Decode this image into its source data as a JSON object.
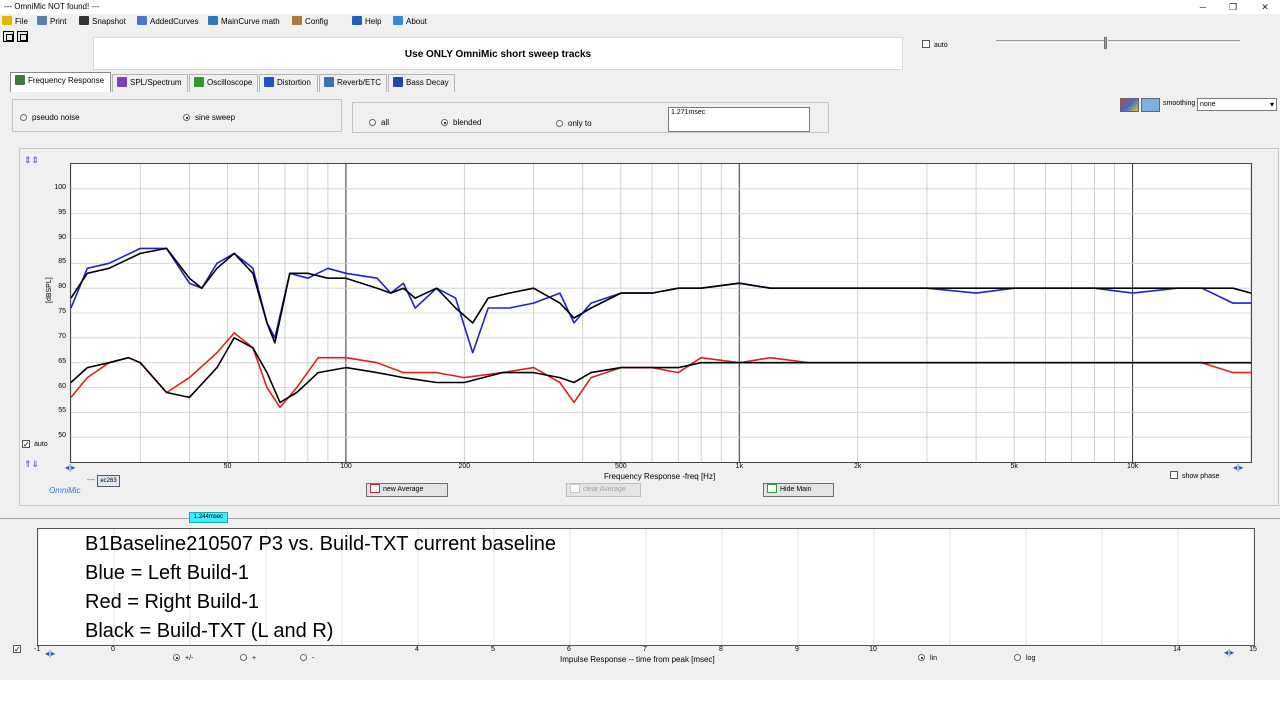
{
  "window": {
    "title": "--- OmniMic NOT found! ---",
    "minimize_glyph": "─",
    "restore_glyph": "❐",
    "close_glyph": "✕"
  },
  "menu": [
    {
      "label": "File",
      "icon": "folder-icon",
      "color": "#e8b400"
    },
    {
      "label": "Print",
      "icon": "printer-icon",
      "color": "#5b7fb0"
    },
    {
      "label": "Snapshot",
      "icon": "camera-icon",
      "color": "#333333"
    },
    {
      "label": "AddedCurves",
      "icon": "curves-icon",
      "color": "#4a78c2"
    },
    {
      "label": "MainCurve math",
      "icon": "calculator-icon",
      "color": "#2f7bb5"
    },
    {
      "label": "Config",
      "icon": "tools-icon",
      "color": "#b07a3b"
    },
    {
      "label": "Help",
      "icon": "help-icon",
      "color": "#1f5fbf"
    },
    {
      "label": "About",
      "icon": "about-icon",
      "color": "#3a86d6"
    }
  ],
  "banner": "Use ONLY OmniMic short sweep tracks",
  "auto_label": "auto",
  "tabs": [
    {
      "label": "Frequency Response",
      "icon": "frequency-response-icon",
      "color": "#3c7a3c",
      "active": true
    },
    {
      "label": "SPL/Spectrum",
      "icon": "spl-meter-icon",
      "color": "#7f3fbf",
      "active": false
    },
    {
      "label": "Oscilloscope",
      "icon": "oscilloscope-icon",
      "color": "#2e9b2e",
      "active": false
    },
    {
      "label": "Distortion",
      "icon": "distortion-icon",
      "color": "#1f52c4",
      "active": false
    },
    {
      "label": "Reverb/ETC",
      "icon": "reverb-icon",
      "color": "#3a6fb5",
      "active": false
    },
    {
      "label": "Bass Decay",
      "icon": "bass-decay-icon",
      "color": "#2048a8",
      "active": false
    }
  ],
  "signal": {
    "pseudo_noise": "pseudo noise",
    "sine_sweep": "sine sweep",
    "selected": "sine sweep"
  },
  "window_mode": {
    "all": "all",
    "blended": "blended",
    "only_to": "only to",
    "selected": "blended",
    "time_value": "1.271msec"
  },
  "smoothing": {
    "label": "smoothing",
    "value": "none",
    "dropdown_glyph": "▾"
  },
  "graph": {
    "ylabel": "[dBSPL]",
    "yticks": [
      "100",
      "95",
      "90",
      "85",
      "80",
      "75",
      "70",
      "65",
      "60",
      "55",
      "50"
    ],
    "xlabel": "Frequency Response -freq [Hz]",
    "xticks": [
      "50",
      "100",
      "200",
      "500",
      "1k",
      "2k",
      "5k",
      "10k"
    ],
    "x_edge_glyph": "◂|▸",
    "auto_label": "auto",
    "show_phase_label": "show phase",
    "brand": "OmniMic",
    "mic_label": "ec263",
    "legend_dash": "—",
    "new_average": "new Average",
    "clear_average": "clear Average",
    "hide_main": "Hide Main"
  },
  "chart_data": {
    "type": "line",
    "xlabel": "Frequency Response -freq [Hz]",
    "ylabel": "[dBSPL]",
    "x_scale": "log",
    "xlim": [
      20,
      20000
    ],
    "ylim": [
      45,
      105
    ],
    "grid": true,
    "series": [
      {
        "color": "#2020d0",
        "points": [
          [
            20,
            76
          ],
          [
            22,
            84
          ],
          [
            25,
            85
          ],
          [
            30,
            88
          ],
          [
            35,
            88
          ],
          [
            40,
            81
          ],
          [
            43,
            80
          ],
          [
            47,
            85
          ],
          [
            52,
            87
          ],
          [
            58,
            84
          ],
          [
            63,
            73
          ],
          [
            66,
            70
          ],
          [
            72,
            83
          ],
          [
            80,
            82
          ],
          [
            90,
            84
          ],
          [
            100,
            83
          ],
          [
            120,
            82
          ],
          [
            130,
            79
          ],
          [
            140,
            81
          ],
          [
            150,
            76
          ],
          [
            170,
            80
          ],
          [
            190,
            78
          ],
          [
            210,
            67
          ],
          [
            230,
            76
          ],
          [
            260,
            76
          ],
          [
            300,
            77
          ],
          [
            350,
            79
          ],
          [
            380,
            73
          ],
          [
            420,
            77
          ],
          [
            500,
            79
          ],
          [
            600,
            79
          ],
          [
            700,
            80
          ],
          [
            800,
            80
          ],
          [
            1000,
            81
          ],
          [
            1200,
            80
          ],
          [
            1500,
            80
          ],
          [
            2000,
            80
          ],
          [
            3000,
            80
          ],
          [
            4000,
            79
          ],
          [
            5000,
            80
          ],
          [
            6000,
            80
          ],
          [
            8000,
            80
          ],
          [
            10000,
            79
          ],
          [
            13000,
            80
          ],
          [
            15000,
            80
          ],
          [
            18000,
            77
          ],
          [
            20000,
            77
          ]
        ]
      },
      {
        "color": "#000000",
        "points": [
          [
            20,
            78
          ],
          [
            22,
            83
          ],
          [
            25,
            84
          ],
          [
            30,
            87
          ],
          [
            35,
            88
          ],
          [
            40,
            82
          ],
          [
            43,
            80
          ],
          [
            47,
            84
          ],
          [
            52,
            87
          ],
          [
            58,
            83
          ],
          [
            63,
            73
          ],
          [
            66,
            69
          ],
          [
            72,
            83
          ],
          [
            80,
            83
          ],
          [
            90,
            82
          ],
          [
            100,
            82
          ],
          [
            120,
            80
          ],
          [
            130,
            79
          ],
          [
            140,
            80
          ],
          [
            150,
            78
          ],
          [
            170,
            80
          ],
          [
            190,
            76
          ],
          [
            210,
            73
          ],
          [
            230,
            78
          ],
          [
            260,
            79
          ],
          [
            300,
            80
          ],
          [
            350,
            77
          ],
          [
            380,
            74
          ],
          [
            420,
            76
          ],
          [
            500,
            79
          ],
          [
            600,
            79
          ],
          [
            700,
            80
          ],
          [
            800,
            80
          ],
          [
            1000,
            81
          ],
          [
            1200,
            80
          ],
          [
            1500,
            80
          ],
          [
            2000,
            80
          ],
          [
            3000,
            80
          ],
          [
            4000,
            80
          ],
          [
            5000,
            80
          ],
          [
            6000,
            80
          ],
          [
            8000,
            80
          ],
          [
            10000,
            80
          ],
          [
            13000,
            80
          ],
          [
            15000,
            80
          ],
          [
            18000,
            80
          ],
          [
            20000,
            79
          ]
        ]
      },
      {
        "color": "#e02020",
        "points": [
          [
            20,
            58
          ],
          [
            22,
            62
          ],
          [
            25,
            65
          ],
          [
            28,
            66
          ],
          [
            30,
            65
          ],
          [
            35,
            59
          ],
          [
            40,
            62
          ],
          [
            47,
            67
          ],
          [
            52,
            71
          ],
          [
            58,
            68
          ],
          [
            63,
            60
          ],
          [
            68,
            56
          ],
          [
            75,
            60
          ],
          [
            85,
            66
          ],
          [
            100,
            66
          ],
          [
            120,
            65
          ],
          [
            140,
            63
          ],
          [
            170,
            63
          ],
          [
            200,
            62
          ],
          [
            250,
            63
          ],
          [
            300,
            64
          ],
          [
            350,
            61
          ],
          [
            380,
            57
          ],
          [
            420,
            62
          ],
          [
            500,
            64
          ],
          [
            600,
            64
          ],
          [
            700,
            63
          ],
          [
            800,
            66
          ],
          [
            1000,
            65
          ],
          [
            1200,
            66
          ],
          [
            1500,
            65
          ],
          [
            2000,
            65
          ],
          [
            3000,
            65
          ],
          [
            4000,
            65
          ],
          [
            5000,
            65
          ],
          [
            6000,
            65
          ],
          [
            8000,
            65
          ],
          [
            10000,
            65
          ],
          [
            13000,
            65
          ],
          [
            15000,
            65
          ],
          [
            18000,
            63
          ],
          [
            20000,
            63
          ]
        ]
      },
      {
        "color": "#000000",
        "points": [
          [
            20,
            61
          ],
          [
            22,
            64
          ],
          [
            25,
            65
          ],
          [
            28,
            66
          ],
          [
            30,
            65
          ],
          [
            35,
            59
          ],
          [
            40,
            58
          ],
          [
            47,
            64
          ],
          [
            52,
            70
          ],
          [
            58,
            68
          ],
          [
            63,
            63
          ],
          [
            68,
            57
          ],
          [
            75,
            59
          ],
          [
            85,
            63
          ],
          [
            100,
            64
          ],
          [
            120,
            63
          ],
          [
            140,
            62
          ],
          [
            170,
            61
          ],
          [
            200,
            61
          ],
          [
            250,
            63
          ],
          [
            300,
            63
          ],
          [
            350,
            62
          ],
          [
            380,
            61
          ],
          [
            420,
            63
          ],
          [
            500,
            64
          ],
          [
            600,
            64
          ],
          [
            700,
            64
          ],
          [
            800,
            65
          ],
          [
            1000,
            65
          ],
          [
            1200,
            65
          ],
          [
            1500,
            65
          ],
          [
            2000,
            65
          ],
          [
            3000,
            65
          ],
          [
            4000,
            65
          ],
          [
            5000,
            65
          ],
          [
            6000,
            65
          ],
          [
            8000,
            65
          ],
          [
            10000,
            65
          ],
          [
            13000,
            65
          ],
          [
            15000,
            65
          ],
          [
            18000,
            65
          ],
          [
            20000,
            65
          ]
        ]
      }
    ]
  },
  "impulse": {
    "marker": "1.244msec",
    "notes": [
      "B1Baseline210507 P3 vs. Build-TXT current baseline",
      "Blue = Left Build-1",
      "Red  = Right Build-1",
      "Black = Build-TXT (L and R)"
    ],
    "xlabel": "Impulse Response  -- time from peak [msec]",
    "xticks": [
      "0",
      "4",
      "5",
      "6",
      "7",
      "8",
      "9",
      "10",
      "14",
      "15"
    ],
    "left_edge_glyph": "-1",
    "sign": {
      "plusminus": "+/-",
      "plus": "+",
      "minus": "-",
      "selected": "+/-"
    },
    "scale": {
      "lin": "lin",
      "log": "log",
      "selected": "lin"
    }
  }
}
